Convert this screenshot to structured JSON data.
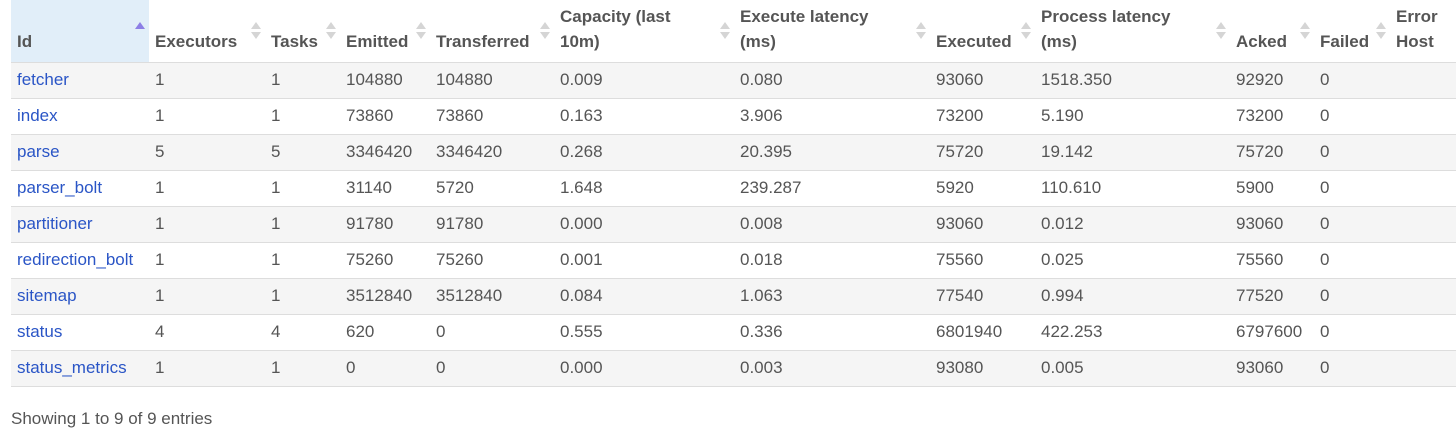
{
  "columns": [
    {
      "key": "id",
      "label": "Id",
      "sort": "asc"
    },
    {
      "key": "executors",
      "label": "Executors",
      "sort": "both"
    },
    {
      "key": "tasks",
      "label": "Tasks",
      "sort": "both"
    },
    {
      "key": "emitted",
      "label": "Emitted",
      "sort": "both"
    },
    {
      "key": "transferred",
      "label": "Transferred",
      "sort": "both"
    },
    {
      "key": "capacity",
      "label": "Capacity (last 10m)",
      "sort": "both"
    },
    {
      "key": "execute_latency",
      "label": "Execute latency (ms)",
      "sort": "both"
    },
    {
      "key": "executed",
      "label": "Executed",
      "sort": "both"
    },
    {
      "key": "process_latency",
      "label": "Process latency (ms)",
      "sort": "both"
    },
    {
      "key": "acked",
      "label": "Acked",
      "sort": "both"
    },
    {
      "key": "failed",
      "label": "Failed",
      "sort": "both"
    },
    {
      "key": "error_host",
      "label": "Error Host",
      "sort": "none"
    }
  ],
  "rows": [
    {
      "id": "fetcher",
      "executors": "1",
      "tasks": "1",
      "emitted": "104880",
      "transferred": "104880",
      "capacity": "0.009",
      "execute_latency": "0.080",
      "executed": "93060",
      "process_latency": "1518.350",
      "acked": "92920",
      "failed": "0",
      "error_host": ""
    },
    {
      "id": "index",
      "executors": "1",
      "tasks": "1",
      "emitted": "73860",
      "transferred": "73860",
      "capacity": "0.163",
      "execute_latency": "3.906",
      "executed": "73200",
      "process_latency": "5.190",
      "acked": "73200",
      "failed": "0",
      "error_host": ""
    },
    {
      "id": "parse",
      "executors": "5",
      "tasks": "5",
      "emitted": "3346420",
      "transferred": "3346420",
      "capacity": "0.268",
      "execute_latency": "20.395",
      "executed": "75720",
      "process_latency": "19.142",
      "acked": "75720",
      "failed": "0",
      "error_host": ""
    },
    {
      "id": "parser_bolt",
      "executors": "1",
      "tasks": "1",
      "emitted": "31140",
      "transferred": "5720",
      "capacity": "1.648",
      "execute_latency": "239.287",
      "executed": "5920",
      "process_latency": "110.610",
      "acked": "5900",
      "failed": "0",
      "error_host": ""
    },
    {
      "id": "partitioner",
      "executors": "1",
      "tasks": "1",
      "emitted": "91780",
      "transferred": "91780",
      "capacity": "0.000",
      "execute_latency": "0.008",
      "executed": "93060",
      "process_latency": "0.012",
      "acked": "93060",
      "failed": "0",
      "error_host": ""
    },
    {
      "id": "redirection_bolt",
      "executors": "1",
      "tasks": "1",
      "emitted": "75260",
      "transferred": "75260",
      "capacity": "0.001",
      "execute_latency": "0.018",
      "executed": "75560",
      "process_latency": "0.025",
      "acked": "75560",
      "failed": "0",
      "error_host": ""
    },
    {
      "id": "sitemap",
      "executors": "1",
      "tasks": "1",
      "emitted": "3512840",
      "transferred": "3512840",
      "capacity": "0.084",
      "execute_latency": "1.063",
      "executed": "77540",
      "process_latency": "0.994",
      "acked": "77520",
      "failed": "0",
      "error_host": ""
    },
    {
      "id": "status",
      "executors": "4",
      "tasks": "4",
      "emitted": "620",
      "transferred": "0",
      "capacity": "0.555",
      "execute_latency": "0.336",
      "executed": "6801940",
      "process_latency": "422.253",
      "acked": "6797600",
      "failed": "0",
      "error_host": ""
    },
    {
      "id": "status_metrics",
      "executors": "1",
      "tasks": "1",
      "emitted": "0",
      "transferred": "0",
      "capacity": "0.000",
      "execute_latency": "0.003",
      "executed": "93080",
      "process_latency": "0.005",
      "acked": "93060",
      "failed": "0",
      "error_host": ""
    }
  ],
  "info": "Showing 1 to 9 of 9 entries"
}
